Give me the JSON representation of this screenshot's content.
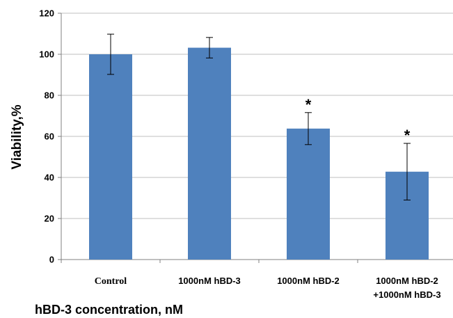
{
  "chart_data": {
    "type": "bar",
    "categories": [
      "Control",
      "1000nM hBD-3",
      "1000nM hBD-2",
      "1000nM hBD-2 +1000nM hBD-3"
    ],
    "category_lines": [
      [
        "Control"
      ],
      [
        "1000nM hBD-3"
      ],
      [
        "1000nM hBD-2"
      ],
      [
        "1000nM hBD-2",
        "+1000nM hBD-3"
      ]
    ],
    "values": [
      100,
      103.2,
      63.8,
      42.8
    ],
    "errors": [
      9.8,
      5,
      7.8,
      13.8
    ],
    "significance": [
      "",
      "",
      "*",
      "*"
    ],
    "xlabel": "hBD-3 concentration, nM",
    "ylabel": "Viability,%",
    "ylim": [
      0,
      120
    ],
    "yticks": [
      0,
      20,
      40,
      60,
      80,
      100,
      120
    ],
    "grid": true,
    "legend": "none",
    "colors": {
      "bar": "#4f81bd",
      "grid": "#bfbfbf",
      "axis": "#808080"
    }
  }
}
